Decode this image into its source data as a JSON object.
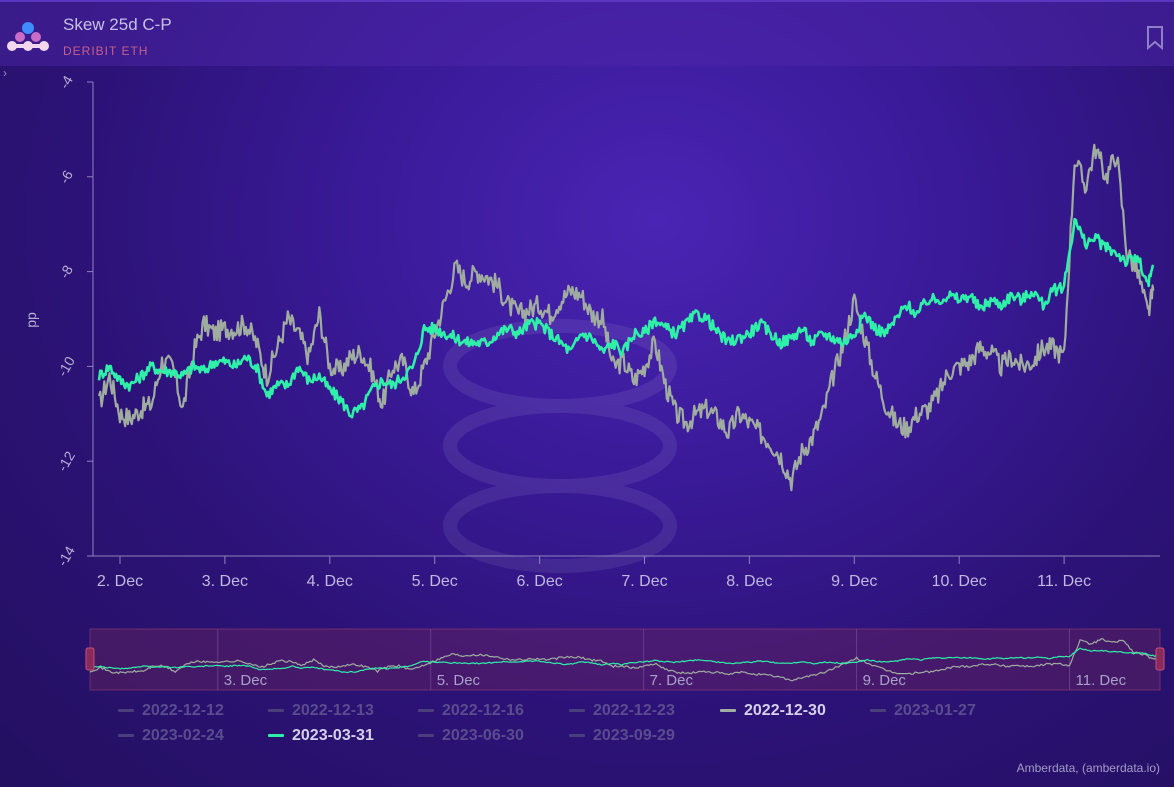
{
  "header": {
    "title": "Skew 25d C-P",
    "subtitle": "DERIBIT ETH",
    "expander": "›"
  },
  "colors": {
    "series_2022_12_30": "#9fac9f",
    "series_2023_03_31": "#2ef0a8",
    "inactive": "#4a3e7c",
    "axis": "#8e83bd"
  },
  "icons": {
    "logo": "amberdata-logo",
    "bookmark": "bookmark-icon",
    "expander": "chevron-right-icon"
  },
  "chart_data": {
    "type": "line",
    "ylabel": "pp",
    "ylim": [
      -14,
      -4
    ],
    "y_ticks": [
      "-4",
      "-6",
      "-8",
      "-10",
      "-12",
      "-14"
    ],
    "x_ticks": [
      "2. Dec",
      "3. Dec",
      "4. Dec",
      "5. Dec",
      "6. Dec",
      "7. Dec",
      "8. Dec",
      "9. Dec",
      "10. Dec",
      "11. Dec"
    ],
    "xlim": [
      1.8,
      11.85
    ],
    "grid": false,
    "legend_position": "bottom",
    "series": [
      {
        "name": "2022-12-30",
        "visible": true,
        "x": [
          1.8,
          1.9,
          2.0,
          2.1,
          2.2,
          2.3,
          2.4,
          2.5,
          2.6,
          2.7,
          2.8,
          2.9,
          3.0,
          3.1,
          3.2,
          3.3,
          3.4,
          3.5,
          3.6,
          3.7,
          3.8,
          3.9,
          4.0,
          4.1,
          4.2,
          4.3,
          4.4,
          4.5,
          4.6,
          4.7,
          4.8,
          4.9,
          5.0,
          5.1,
          5.2,
          5.3,
          5.4,
          5.5,
          5.6,
          5.7,
          5.8,
          5.9,
          6.0,
          6.1,
          6.2,
          6.3,
          6.4,
          6.5,
          6.6,
          6.7,
          6.8,
          6.9,
          7.0,
          7.1,
          7.2,
          7.3,
          7.4,
          7.5,
          7.6,
          7.7,
          7.8,
          7.9,
          8.0,
          8.1,
          8.2,
          8.3,
          8.4,
          8.5,
          8.6,
          8.7,
          8.8,
          8.9,
          9.0,
          9.1,
          9.2,
          9.3,
          9.4,
          9.5,
          9.6,
          9.7,
          9.8,
          9.9,
          10.0,
          10.1,
          10.2,
          10.3,
          10.4,
          10.5,
          10.6,
          10.7,
          10.8,
          10.9,
          11.0,
          11.1,
          11.2,
          11.3,
          11.4,
          11.5,
          11.6,
          11.7,
          11.8,
          11.85
        ],
        "y": [
          -10.8,
          -10.2,
          -11.0,
          -11.1,
          -10.9,
          -10.8,
          -9.9,
          -10.0,
          -10.9,
          -9.7,
          -9.1,
          -9.3,
          -9.2,
          -9.2,
          -9.1,
          -9.5,
          -10.2,
          -9.6,
          -9.0,
          -9.3,
          -9.8,
          -8.9,
          -10.0,
          -10.1,
          -9.8,
          -9.7,
          -10.1,
          -10.8,
          -10.0,
          -9.9,
          -10.6,
          -10.0,
          -9.3,
          -8.6,
          -7.9,
          -8.2,
          -8.0,
          -8.1,
          -8.3,
          -8.7,
          -8.9,
          -8.8,
          -8.7,
          -8.9,
          -8.6,
          -8.4,
          -8.5,
          -8.9,
          -9.0,
          -10.0,
          -9.9,
          -10.3,
          -10.0,
          -9.5,
          -10.4,
          -11.0,
          -11.2,
          -11.0,
          -10.9,
          -11.1,
          -11.4,
          -11.0,
          -11.2,
          -11.4,
          -11.6,
          -11.9,
          -12.4,
          -11.8,
          -11.5,
          -11.0,
          -10.2,
          -9.5,
          -8.6,
          -9.4,
          -10.2,
          -10.8,
          -11.2,
          -11.3,
          -11.0,
          -10.9,
          -10.6,
          -10.1,
          -10.0,
          -9.9,
          -9.6,
          -9.7,
          -10.0,
          -9.8,
          -10.0,
          -9.9,
          -9.6,
          -9.6,
          -9.8,
          -5.6,
          -6.2,
          -5.4,
          -6.0,
          -5.5,
          -7.6,
          -8.0,
          -8.9,
          -8.4
        ],
        "label": "2022-12-30"
      },
      {
        "name": "2023-03-31",
        "visible": true,
        "x": [
          1.8,
          1.9,
          2.0,
          2.1,
          2.2,
          2.3,
          2.4,
          2.5,
          2.6,
          2.7,
          2.8,
          2.9,
          3.0,
          3.1,
          3.2,
          3.3,
          3.4,
          3.5,
          3.6,
          3.7,
          3.8,
          3.9,
          4.0,
          4.1,
          4.2,
          4.3,
          4.4,
          4.5,
          4.6,
          4.7,
          4.8,
          4.9,
          5.0,
          5.1,
          5.2,
          5.3,
          5.4,
          5.5,
          5.6,
          5.7,
          5.8,
          5.9,
          6.0,
          6.1,
          6.2,
          6.3,
          6.4,
          6.5,
          6.6,
          6.7,
          6.8,
          6.9,
          7.0,
          7.1,
          7.2,
          7.3,
          7.4,
          7.5,
          7.6,
          7.7,
          7.8,
          7.9,
          8.0,
          8.1,
          8.2,
          8.3,
          8.4,
          8.5,
          8.6,
          8.7,
          8.8,
          8.9,
          9.0,
          9.1,
          9.2,
          9.3,
          9.4,
          9.5,
          9.6,
          9.7,
          9.8,
          9.9,
          10.0,
          10.1,
          10.2,
          10.3,
          10.4,
          10.5,
          10.6,
          10.7,
          10.8,
          10.9,
          11.0,
          11.1,
          11.2,
          11.3,
          11.4,
          11.5,
          11.6,
          11.7,
          11.8,
          11.85
        ],
        "y": [
          -10.2,
          -10.0,
          -10.3,
          -10.4,
          -10.2,
          -10.0,
          -10.1,
          -10.1,
          -10.2,
          -10.0,
          -10.1,
          -9.9,
          -9.9,
          -10.0,
          -9.8,
          -10.0,
          -10.6,
          -10.4,
          -10.4,
          -10.0,
          -10.3,
          -10.2,
          -10.5,
          -10.7,
          -11.0,
          -10.9,
          -10.5,
          -10.3,
          -10.4,
          -10.2,
          -10.0,
          -9.2,
          -9.2,
          -9.3,
          -9.4,
          -9.5,
          -9.5,
          -9.5,
          -9.3,
          -9.2,
          -9.3,
          -9.1,
          -9.1,
          -9.3,
          -9.5,
          -9.7,
          -9.3,
          -9.4,
          -9.7,
          -9.5,
          -9.7,
          -9.3,
          -9.3,
          -9.0,
          -9.2,
          -9.3,
          -9.1,
          -8.9,
          -9.0,
          -9.3,
          -9.5,
          -9.4,
          -9.3,
          -9.1,
          -9.3,
          -9.5,
          -9.4,
          -9.2,
          -9.5,
          -9.3,
          -9.4,
          -9.5,
          -9.3,
          -8.9,
          -9.2,
          -9.3,
          -9.0,
          -8.7,
          -8.9,
          -8.6,
          -8.6,
          -8.5,
          -8.6,
          -8.5,
          -8.8,
          -8.6,
          -8.7,
          -8.5,
          -8.6,
          -8.4,
          -8.7,
          -8.4,
          -8.3,
          -6.9,
          -7.4,
          -7.3,
          -7.5,
          -7.6,
          -7.8,
          -7.7,
          -8.3,
          -7.9
        ],
        "label": "2023-03-31"
      }
    ],
    "navigator": {
      "x_ticks": [
        "3. Dec",
        "5. Dec",
        "7. Dec",
        "9. Dec",
        "11. Dec"
      ]
    }
  },
  "legend": [
    {
      "label": "2022-12-12",
      "active": false
    },
    {
      "label": "2022-12-13",
      "active": false
    },
    {
      "label": "2022-12-16",
      "active": false
    },
    {
      "label": "2022-12-23",
      "active": false
    },
    {
      "label": "2022-12-30",
      "active": true,
      "color": "#9fac9f"
    },
    {
      "label": "2023-01-27",
      "active": false
    },
    {
      "label": "2023-02-24",
      "active": false
    },
    {
      "label": "2023-03-31",
      "active": true,
      "color": "#2ef0a8"
    },
    {
      "label": "2023-06-30",
      "active": false
    },
    {
      "label": "2023-09-29",
      "active": false
    }
  ],
  "credits": "Amberdata, (amberdata.io)"
}
